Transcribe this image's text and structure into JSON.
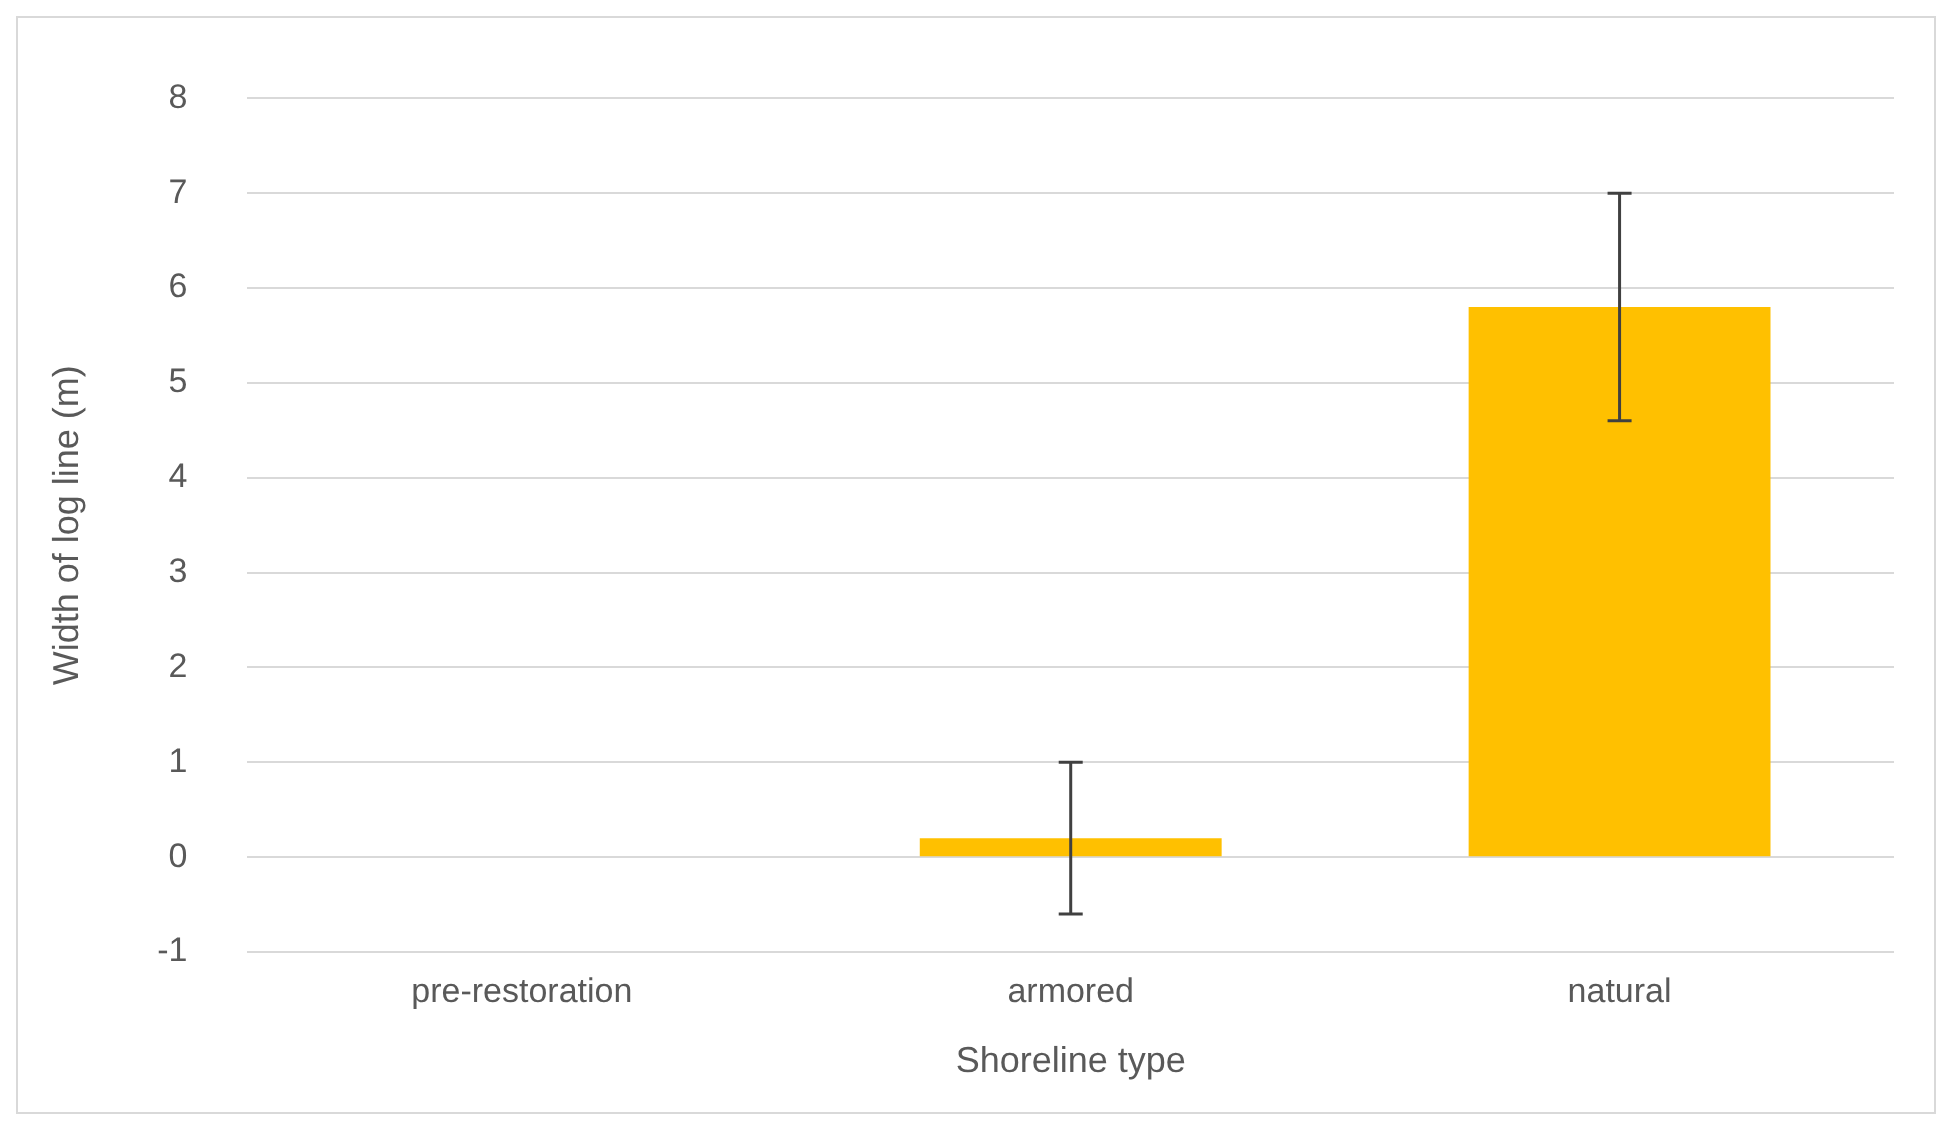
{
  "chart_data": {
    "type": "bar",
    "xlabel": "Shoreline type",
    "ylabel": "Width of log line (m)",
    "categories": [
      "pre-restoration",
      "armored",
      "natural"
    ],
    "values": [
      0,
      0.2,
      5.8
    ],
    "errors": [
      null,
      0.8,
      1.2
    ],
    "color": "#ffc000",
    "ylim": [
      -1,
      8
    ],
    "yticks": [
      -1,
      0,
      1,
      2,
      3,
      4,
      5,
      6,
      7,
      8
    ],
    "grid": "y",
    "legend": false
  }
}
